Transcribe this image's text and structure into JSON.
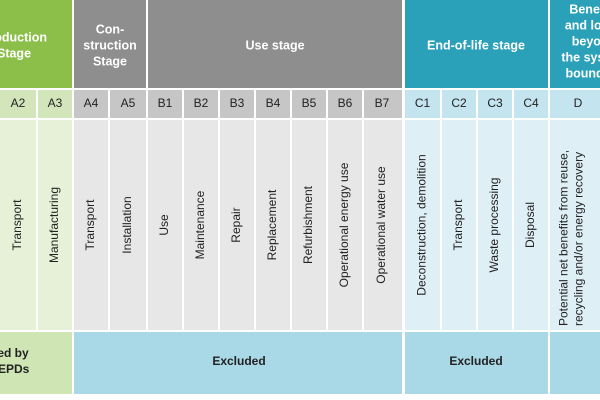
{
  "stages": [
    {
      "lines": [
        "Production",
        "Stage"
      ]
    },
    {
      "lines": [
        "Con-",
        "struction",
        "Stage"
      ]
    },
    {
      "lines": [
        "Use stage"
      ]
    },
    {
      "lines": [
        "End-of-life stage"
      ]
    },
    {
      "lines": [
        "Benefits",
        "and loads",
        "beyond",
        "the system",
        "boundary"
      ]
    }
  ],
  "modules": [
    {
      "code": "A2",
      "description": [
        "Transport"
      ]
    },
    {
      "code": "A3",
      "description": [
        "Manufacturing"
      ]
    },
    {
      "code": "A4",
      "description": [
        "Transport"
      ]
    },
    {
      "code": "A5",
      "description": [
        "Installation"
      ]
    },
    {
      "code": "B1",
      "description": [
        "Use"
      ]
    },
    {
      "code": "B2",
      "description": [
        "Maintenance"
      ]
    },
    {
      "code": "B3",
      "description": [
        "Repair"
      ]
    },
    {
      "code": "B4",
      "description": [
        "Replacement"
      ]
    },
    {
      "code": "B5",
      "description": [
        "Refurbishment"
      ]
    },
    {
      "code": "B6",
      "description": [
        "Operational energy use"
      ]
    },
    {
      "code": "B7",
      "description": [
        "Operational water use"
      ]
    },
    {
      "code": "C1",
      "description": [
        "Deconstruction, demolition"
      ]
    },
    {
      "code": "C2",
      "description": [
        "Transport"
      ]
    },
    {
      "code": "C3",
      "description": [
        "Waste processing"
      ]
    },
    {
      "code": "C4",
      "description": [
        "Disposal"
      ]
    },
    {
      "code": "D",
      "description": [
        "Potential net benefits from reuse,",
        "recycling and/or energy recovery"
      ]
    }
  ],
  "coverage": [
    {
      "lines": [
        "Covered by",
        "LEED EPDs"
      ]
    },
    {
      "lines": [
        "Excluded"
      ]
    },
    {
      "lines": [
        "Excluded"
      ]
    }
  ]
}
